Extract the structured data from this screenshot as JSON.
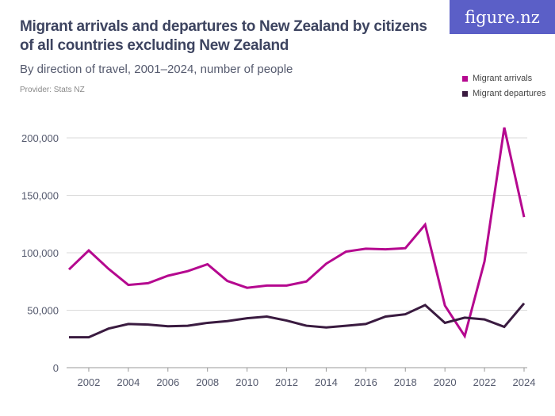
{
  "header": {
    "title": "Migrant arrivals and departures to New Zealand by citizens of all countries excluding New Zealand",
    "subtitle": "By direction of travel, 2001–2024, number of people",
    "provider": "Provider: Stats NZ",
    "logo": "figure.nz"
  },
  "chart_data": {
    "type": "line",
    "title": "Migrant arrivals and departures to New Zealand by citizens of all countries excluding New Zealand",
    "subtitle": "By direction of travel, 2001–2024, number of people",
    "x": [
      2001,
      2002,
      2003,
      2004,
      2005,
      2006,
      2007,
      2008,
      2009,
      2010,
      2011,
      2012,
      2013,
      2014,
      2015,
      2016,
      2017,
      2018,
      2019,
      2020,
      2021,
      2022,
      2023,
      2024
    ],
    "xticks": [
      "2002",
      "2004",
      "2006",
      "2008",
      "2010",
      "2012",
      "2014",
      "2016",
      "2018",
      "2020",
      "2022",
      "2024"
    ],
    "yticks": [
      "0",
      "50,000",
      "100,000",
      "150,000",
      "200,000"
    ],
    "ylim": [
      0,
      200000
    ],
    "grid": true,
    "legend": "top-right",
    "series": [
      {
        "name": "Migrant arrivals",
        "color": "#b5088f",
        "values": [
          85500,
          102000,
          86000,
          72000,
          73500,
          80000,
          84000,
          90000,
          75500,
          69500,
          71500,
          71500,
          75000,
          90500,
          101000,
          103500,
          103000,
          104000,
          124500,
          54000,
          27500,
          92500,
          209000,
          131000
        ]
      },
      {
        "name": "Migrant departures",
        "color": "#3a1b40",
        "values": [
          26500,
          26500,
          34000,
          38000,
          37500,
          36000,
          36500,
          39000,
          40500,
          43000,
          44500,
          41000,
          36500,
          35000,
          36500,
          38000,
          44500,
          46500,
          54500,
          39000,
          43500,
          42000,
          35500,
          56000
        ]
      }
    ]
  }
}
